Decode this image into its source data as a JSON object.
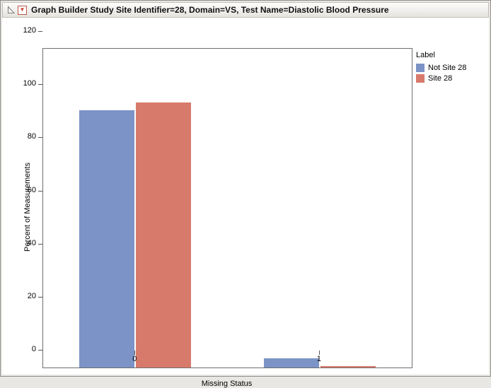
{
  "header": {
    "title": "Graph Builder Study Site Identifier=28, Domain=VS, Test Name=Diastolic Blood Pressure"
  },
  "legend": {
    "title": "Label",
    "items": [
      {
        "label": "Not Site 28",
        "color": "#7b93c6"
      },
      {
        "label": "Site 28",
        "color": "#d87a6b"
      }
    ]
  },
  "chart_data": {
    "type": "bar",
    "categories": [
      "0",
      "1"
    ],
    "series": [
      {
        "name": "Not Site 28",
        "color": "#7b93c6",
        "values": [
          96.8,
          3.5
        ]
      },
      {
        "name": "Site 28",
        "color": "#d87a6b",
        "values": [
          99.8,
          0.5
        ]
      }
    ],
    "title": "",
    "xlabel": "Missing Status",
    "ylabel": "Percent of Measurements",
    "ylim": [
      0,
      120
    ],
    "yticks": [
      0,
      20,
      40,
      60,
      80,
      100,
      120
    ],
    "legend_title": "Label",
    "legend_position": "right",
    "grid": false
  }
}
